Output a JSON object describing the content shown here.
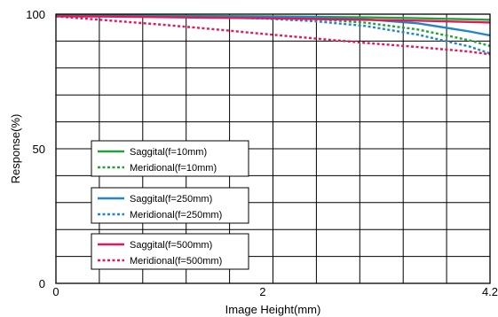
{
  "chart_data": {
    "type": "line",
    "title": "",
    "xlabel": "Image Height(mm)",
    "ylabel": "Response(%)",
    "xlim": [
      0,
      4.2
    ],
    "ylim": [
      0,
      100
    ],
    "x_ticks": [
      0,
      2,
      4.2
    ],
    "x_tick_labels": [
      "0",
      "2",
      "4.2"
    ],
    "y_ticks": [
      0,
      50,
      100
    ],
    "y_tick_labels": [
      "0",
      "50",
      "100"
    ],
    "grid": true,
    "legend_groups": [
      [
        "Saggital(f=10mm)",
        "Meridional(f=10mm)"
      ],
      [
        "Saggital(f=250mm)",
        "Meridional(f=250mm)"
      ],
      [
        "Saggital(f=500mm)",
        "Meridional(f=500mm)"
      ]
    ],
    "series": [
      {
        "name": "Saggital(f=10mm)",
        "color": "#22a33a",
        "dash": "solid",
        "x": [
          0,
          0.5,
          1,
          1.5,
          2,
          2.5,
          3,
          3.5,
          4,
          4.2
        ],
        "y": [
          99.5,
          99.5,
          99.4,
          99.3,
          99.2,
          99,
          98.8,
          98.5,
          98.1,
          97.9
        ]
      },
      {
        "name": "Meridional(f=10mm)",
        "color": "#22a33a",
        "dash": "dotted",
        "x": [
          0,
          0.5,
          1,
          1.5,
          2,
          2.5,
          3,
          3.5,
          4,
          4.2
        ],
        "y": [
          99.5,
          99.4,
          99.3,
          99.2,
          98.9,
          98.2,
          96.8,
          94.3,
          90.3,
          88.2
        ]
      },
      {
        "name": "Saggital(f=250mm)",
        "color": "#1f86c8",
        "dash": "solid",
        "x": [
          0,
          0.5,
          1,
          1.5,
          2,
          2.5,
          3,
          3.5,
          4,
          4.2
        ],
        "y": [
          99.3,
          99.3,
          99.2,
          99.1,
          99,
          98.8,
          98.1,
          96.6,
          93.6,
          92.1
        ]
      },
      {
        "name": "Meridional(f=250mm)",
        "color": "#1f86c8",
        "dash": "dotted",
        "x": [
          0,
          0.5,
          1,
          1.5,
          2,
          2.5,
          3,
          3.5,
          4,
          4.2
        ],
        "y": [
          99.3,
          99.2,
          99.1,
          98.9,
          98.4,
          97.4,
          95.6,
          92.4,
          88,
          85.4
        ]
      },
      {
        "name": "Saggital(f=500mm)",
        "color": "#e3175a",
        "dash": "solid",
        "x": [
          0,
          0.5,
          1,
          1.5,
          2,
          2.5,
          3,
          3.5,
          4,
          4.2
        ],
        "y": [
          99.2,
          99.1,
          98.9,
          98.7,
          98.5,
          98.2,
          97.9,
          97.6,
          97.1,
          96.9
        ]
      },
      {
        "name": "Meridional(f=500mm)",
        "color": "#e3175a",
        "dash": "dotted",
        "x": [
          0,
          0.5,
          1,
          1.5,
          2,
          2.5,
          3,
          3.5,
          4,
          4.2
        ],
        "y": [
          99.2,
          97.7,
          96.2,
          94.5,
          92.7,
          91,
          89.3,
          87.8,
          86.1,
          85.1
        ]
      }
    ]
  }
}
